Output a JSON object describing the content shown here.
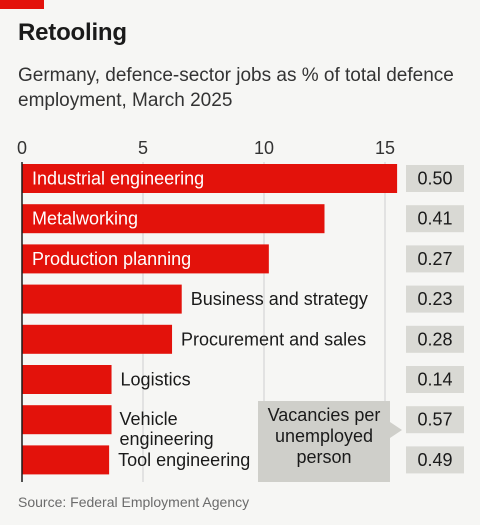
{
  "title": "Retooling",
  "subtitle": "Germany, defence-sector jobs as % of total defence employment, March 2025",
  "source": "Source: Federal Employment Agency",
  "colors": {
    "bar": "#e3120b",
    "badge": "#d9d9d4",
    "callout": "#cfcfca",
    "axis": "#333333"
  },
  "chart_data": {
    "type": "bar",
    "orientation": "horizontal",
    "xlim": [
      0,
      15
    ],
    "xticks": [
      0,
      5,
      10,
      15
    ],
    "grid": true,
    "categories": [
      "Industrial engineering",
      "Metalworking",
      "Production planning",
      "Business and strategy",
      "Procurement and sales",
      "Logistics",
      "Vehicle engineering",
      "Tool engineering"
    ],
    "values": [
      15.5,
      12.5,
      10.2,
      6.6,
      6.2,
      3.7,
      3.7,
      3.6
    ],
    "secondary_values_label": "Vacancies per unemployed person",
    "secondary_values": [
      "0.50",
      "0.41",
      "0.27",
      "0.23",
      "0.28",
      "0.14",
      "0.57",
      "0.49"
    ]
  }
}
